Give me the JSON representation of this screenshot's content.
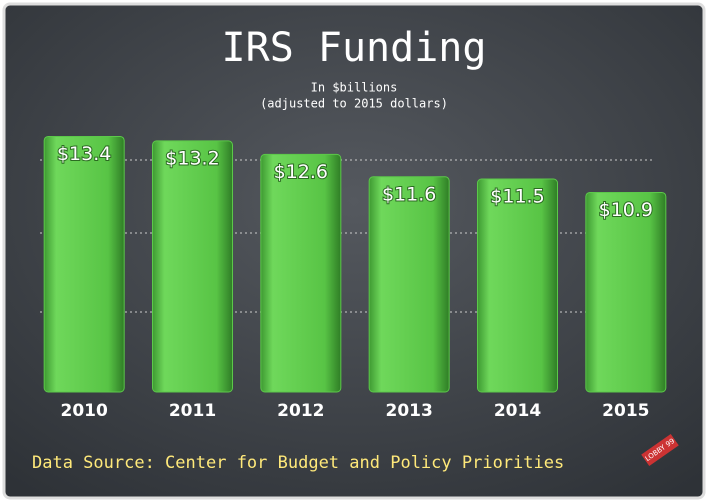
{
  "chart_data": {
    "type": "bar",
    "title": "IRS Funding",
    "subtitle": "In $billions",
    "subtitle_note": "(adjusted to 2015 dollars)",
    "categories": [
      "2010",
      "2011",
      "2012",
      "2013",
      "2014",
      "2015"
    ],
    "values": [
      13.4,
      13.2,
      12.6,
      11.6,
      11.5,
      10.9
    ],
    "value_labels": [
      "$13.4",
      "$13.2",
      "$12.6",
      "$11.6",
      "$11.5",
      "$10.9"
    ],
    "color": "#5cc84a",
    "ylim": [
      2,
      14
    ],
    "source": "Data Source: Center for Budget and Policy Priorities",
    "logo_text": "LOBBY 99"
  }
}
